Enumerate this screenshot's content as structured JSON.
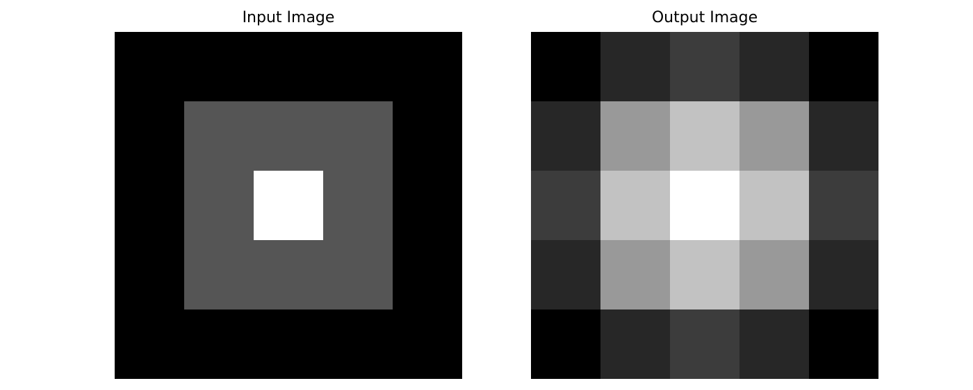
{
  "chart_data": [
    {
      "type": "heatmap",
      "title": "Input Image",
      "colormap": "gray",
      "axes": "off",
      "grid": false,
      "value_range": [
        0,
        255
      ],
      "matrix": [
        [
          0,
          0,
          0,
          0,
          0
        ],
        [
          0,
          85,
          85,
          85,
          0
        ],
        [
          0,
          85,
          255,
          85,
          0
        ],
        [
          0,
          85,
          85,
          85,
          0
        ],
        [
          0,
          0,
          0,
          0,
          0
        ]
      ]
    },
    {
      "type": "heatmap",
      "title": "Output Image",
      "colormap": "gray",
      "axes": "off",
      "grid": false,
      "value_range": [
        0,
        255
      ],
      "matrix": [
        [
          0,
          39,
          60,
          39,
          0
        ],
        [
          39,
          153,
          194,
          153,
          39
        ],
        [
          60,
          194,
          255,
          194,
          60
        ],
        [
          39,
          153,
          194,
          153,
          39
        ],
        [
          0,
          39,
          60,
          39,
          0
        ]
      ]
    }
  ]
}
